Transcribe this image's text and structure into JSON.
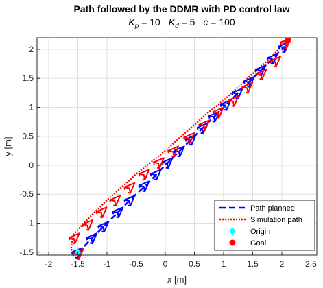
{
  "chart_data": {
    "type": "line",
    "title": "Path followed by the DDMR with PD control law",
    "subtitle": {
      "kp_symbol": "K",
      "kp_sub": "p",
      "kp_value": " = 10",
      "kd_symbol": "K",
      "kd_sub": "d",
      "kd_value": " = 5",
      "c_symbol": "c",
      "c_value": " = 100"
    },
    "xlabel": "x [m]",
    "ylabel": "y [m]",
    "xlim": [
      -2.2,
      2.6
    ],
    "ylim": [
      -1.55,
      2.2
    ],
    "xticks": [
      -2,
      -1.5,
      -1,
      -0.5,
      0,
      0.5,
      1,
      1.5,
      2,
      2.5
    ],
    "yticks": [
      -1.5,
      -1,
      -0.5,
      0,
      0.5,
      1,
      1.5,
      2
    ],
    "xtick_labels": [
      "-2",
      "-1.5",
      "-1",
      "-0.5",
      "0",
      "0.5",
      "1",
      "1.5",
      "2",
      "2.5"
    ],
    "ytick_labels": [
      "-1.5",
      "-1",
      "-0.5",
      "0",
      "0.5",
      "1",
      "1.5",
      "2"
    ],
    "grid": true,
    "legend_position": "bottom-right",
    "series": [
      {
        "name": "Path planned",
        "style": "dashed",
        "color": "#0000ff",
        "x": [
          -1.5,
          -1.3,
          -1.1,
          -0.9,
          -0.7,
          -0.5,
          -0.3,
          -0.1,
          0.1,
          0.3,
          0.5,
          0.7,
          0.9,
          1.1,
          1.3,
          1.5,
          1.7,
          1.9,
          2.05
        ],
        "y": [
          -1.52,
          -1.3,
          -1.1,
          -0.9,
          -0.7,
          -0.5,
          -0.32,
          -0.1,
          0.1,
          0.3,
          0.5,
          0.7,
          0.9,
          1.1,
          1.3,
          1.5,
          1.7,
          1.9,
          2.05
        ]
      },
      {
        "name": "Simulation path",
        "style": "dotted",
        "color": "#ff0000",
        "x": [
          -1.52,
          -1.62,
          -1.58,
          -1.4,
          -1.2,
          -1.0,
          -0.75,
          -0.5,
          -0.25,
          0.0,
          0.25,
          0.5,
          0.75,
          1.0,
          1.25,
          1.5,
          1.75,
          1.95,
          2.08
        ],
        "y": [
          -1.52,
          -1.45,
          -1.2,
          -1.0,
          -0.8,
          -0.6,
          -0.38,
          -0.15,
          0.05,
          0.25,
          0.48,
          0.7,
          0.92,
          1.12,
          1.35,
          1.58,
          1.8,
          2.0,
          2.15
        ]
      }
    ],
    "robots_planned": {
      "color": "#0000ff",
      "x": [
        -1.5,
        -1.25,
        -1.05,
        -0.8,
        -0.6,
        -0.35,
        -0.15,
        0.05,
        0.25,
        0.45,
        0.65,
        0.85,
        1.05,
        1.25,
        1.45,
        1.65,
        1.85,
        2.05
      ],
      "y": [
        -1.5,
        -1.25,
        -1.05,
        -0.8,
        -0.6,
        -0.35,
        -0.15,
        0.05,
        0.25,
        0.45,
        0.65,
        0.85,
        1.05,
        1.25,
        1.45,
        1.65,
        1.85,
        2.05
      ]
    },
    "robots_simulated": {
      "color": "#ff0000",
      "x": [
        -1.48,
        -1.55,
        -1.32,
        -1.08,
        -0.85,
        -0.6,
        -0.35,
        -0.1,
        0.15,
        0.42,
        0.68,
        0.92,
        1.18,
        1.42,
        1.66,
        1.9,
        2.08
      ],
      "y": [
        -1.52,
        -1.25,
        -1.02,
        -0.8,
        -0.6,
        -0.38,
        -0.15,
        0.05,
        0.25,
        0.48,
        0.7,
        0.92,
        1.12,
        1.35,
        1.58,
        1.8,
        2.12
      ]
    },
    "markers": [
      {
        "name": "Origin",
        "shape": "diamond",
        "color": "#00ffff",
        "x": -1.5,
        "y": -1.5
      },
      {
        "name": "Goal",
        "shape": "circle",
        "color": "#ff0000",
        "x": 2.1,
        "y": 2.15
      }
    ]
  }
}
